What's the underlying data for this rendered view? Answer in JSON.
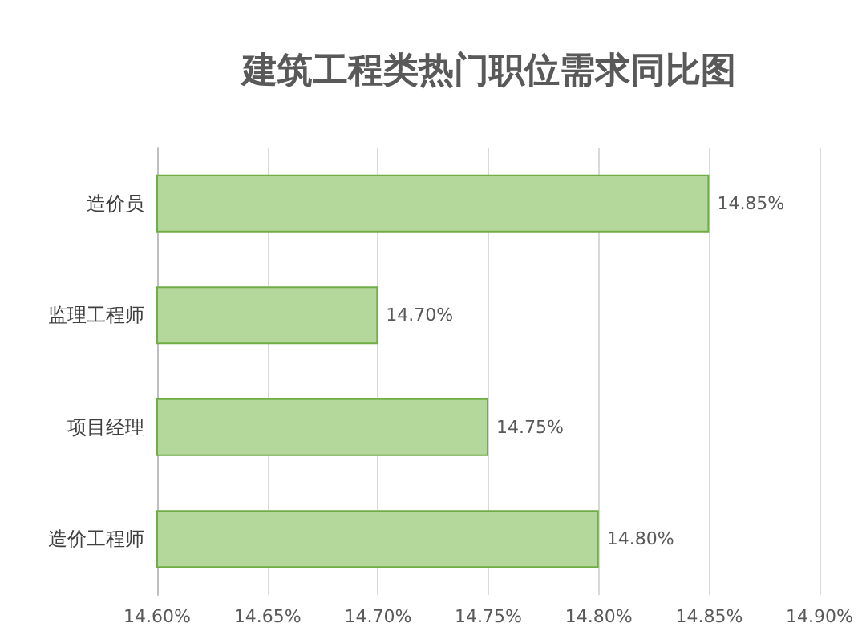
{
  "chart_data": {
    "type": "bar",
    "orientation": "horizontal",
    "title": "建筑工程类热门职位需求同比图",
    "categories": [
      "造价员",
      "监理工程师",
      "项目经理",
      "造价工程师"
    ],
    "values": [
      14.85,
      14.7,
      14.75,
      14.8
    ],
    "value_labels": [
      "14.85%",
      "14.70%",
      "14.75%",
      "14.80%"
    ],
    "color": "#b4d89c",
    "xlim": [
      14.6,
      14.9
    ],
    "xticks": [
      {
        "value": 14.6,
        "label": "14.60%"
      },
      {
        "value": 14.65,
        "label": "14.65%"
      },
      {
        "value": 14.7,
        "label": "14.70%"
      },
      {
        "value": 14.75,
        "label": "14.75%"
      },
      {
        "value": 14.8,
        "label": "14.80%"
      },
      {
        "value": 14.85,
        "label": "14.85%"
      },
      {
        "value": 14.9,
        "label": "14.90%"
      }
    ],
    "grid": "x"
  }
}
